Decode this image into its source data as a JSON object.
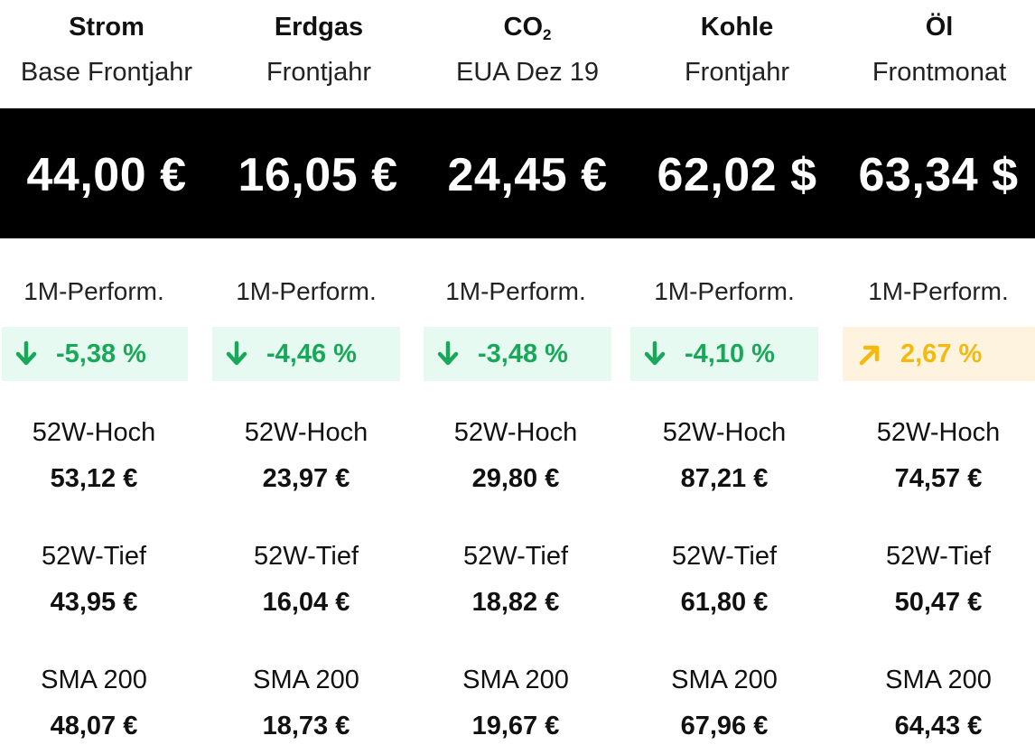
{
  "colors": {
    "background": "#ffffff",
    "price_band": "#000000",
    "down_text": "#19a85a",
    "down_bg": "#e7faf1",
    "up_text": "#f5b90c",
    "up_bg": "#fef3df"
  },
  "columns": [
    {
      "name": "Strom",
      "name_sub": "",
      "subtitle": "Base Frontjahr",
      "price": "44,00 €",
      "perf_label": "1M-Perform.",
      "perf_value": "-5,38 %",
      "perf_direction": "down",
      "perf_icon": "arrow-down-icon",
      "high_label": "52W-Hoch",
      "high_value": "53,12 €",
      "low_label": "52W-Tief",
      "low_value": "43,95 €",
      "sma_label": "SMA 200",
      "sma_value": "48,07 €"
    },
    {
      "name": "Erdgas",
      "name_sub": "",
      "subtitle": "Frontjahr",
      "price": "16,05 €",
      "perf_label": "1M-Perform.",
      "perf_value": "-4,46 %",
      "perf_direction": "down",
      "perf_icon": "arrow-down-icon",
      "high_label": "52W-Hoch",
      "high_value": "23,97 €",
      "low_label": "52W-Tief",
      "low_value": "16,04 €",
      "sma_label": "SMA 200",
      "sma_value": "18,73 €"
    },
    {
      "name": "CO",
      "name_sub": "2",
      "subtitle": "EUA Dez 19",
      "price": "24,45 €",
      "perf_label": "1M-Perform.",
      "perf_value": "-3,48 %",
      "perf_direction": "down",
      "perf_icon": "arrow-down-icon",
      "high_label": "52W-Hoch",
      "high_value": "29,80 €",
      "low_label": "52W-Tief",
      "low_value": "18,82 €",
      "sma_label": "SMA 200",
      "sma_value": "19,67 €"
    },
    {
      "name": "Kohle",
      "name_sub": "",
      "subtitle": "Frontjahr",
      "price": "62,02 $",
      "perf_label": "1M-Perform.",
      "perf_value": "-4,10 %",
      "perf_direction": "down",
      "perf_icon": "arrow-down-icon",
      "high_label": "52W-Hoch",
      "high_value": "87,21 €",
      "low_label": "52W-Tief",
      "low_value": "61,80 €",
      "sma_label": "SMA 200",
      "sma_value": "67,96 €"
    },
    {
      "name": "Öl",
      "name_sub": "",
      "subtitle": "Frontmonat",
      "price": "63,34 $",
      "perf_label": "1M-Perform.",
      "perf_value": "2,67 %",
      "perf_direction": "up",
      "perf_icon": "arrow-up-right-icon",
      "high_label": "52W-Hoch",
      "high_value": "74,57 €",
      "low_label": "52W-Tief",
      "low_value": "50,47 €",
      "sma_label": "SMA 200",
      "sma_value": "64,43 €"
    }
  ]
}
